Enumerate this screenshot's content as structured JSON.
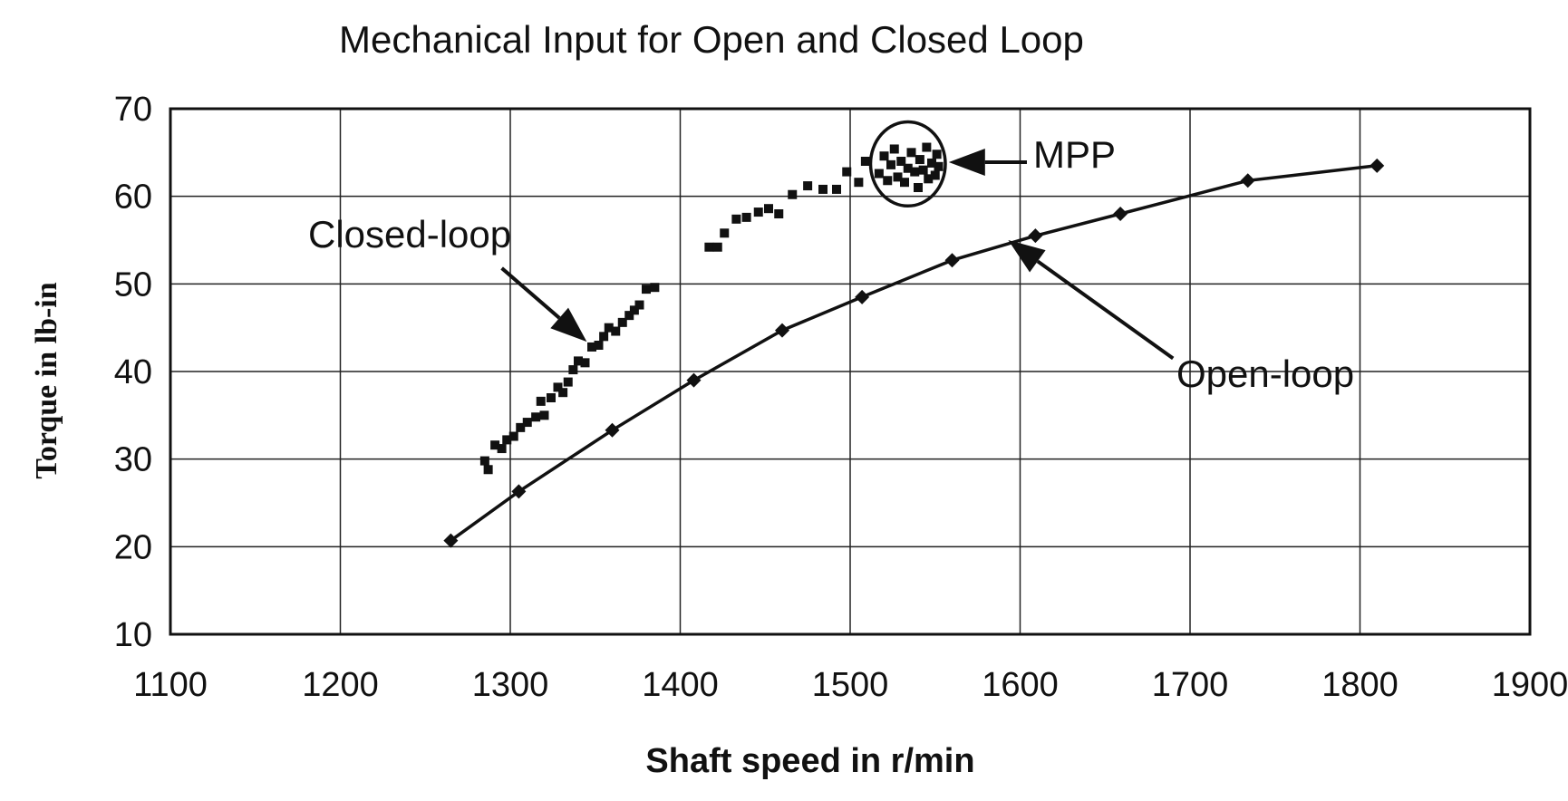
{
  "chart_data": {
    "type": "scatter",
    "title": "Mechanical Input for Open and Closed Loop",
    "xlabel": "Shaft speed in r/min",
    "ylabel": "Torque in lb-in",
    "xlim": [
      1100,
      1900
    ],
    "ylim": [
      10,
      70
    ],
    "x_ticks": [
      1100,
      1200,
      1300,
      1400,
      1500,
      1600,
      1700,
      1800,
      1900
    ],
    "y_ticks": [
      10,
      20,
      30,
      40,
      50,
      60,
      70
    ],
    "grid": true,
    "series": [
      {
        "name": "Open-loop",
        "style": "line-with-diamond-markers",
        "color": "#111111",
        "points": [
          [
            1265,
            20.7
          ],
          [
            1305,
            26.3
          ],
          [
            1360,
            33.3
          ],
          [
            1408,
            39.0
          ],
          [
            1460,
            44.7
          ],
          [
            1507,
            48.5
          ],
          [
            1560,
            52.7
          ],
          [
            1609,
            55.5
          ],
          [
            1659,
            58.0
          ],
          [
            1734,
            61.8
          ],
          [
            1810,
            63.5
          ]
        ]
      },
      {
        "name": "Closed-loop",
        "style": "square-markers",
        "color": "#111111",
        "points": [
          [
            1285,
            29.8
          ],
          [
            1287,
            28.8
          ],
          [
            1291,
            31.6
          ],
          [
            1295,
            31.2
          ],
          [
            1298,
            32.2
          ],
          [
            1302,
            32.6
          ],
          [
            1306,
            33.6
          ],
          [
            1310,
            34.2
          ],
          [
            1315,
            34.8
          ],
          [
            1320,
            35.0
          ],
          [
            1318,
            36.6
          ],
          [
            1324,
            37.0
          ],
          [
            1328,
            38.2
          ],
          [
            1331,
            37.6
          ],
          [
            1334,
            38.8
          ],
          [
            1337,
            40.2
          ],
          [
            1340,
            41.2
          ],
          [
            1344,
            41.0
          ],
          [
            1348,
            42.8
          ],
          [
            1352,
            43.0
          ],
          [
            1355,
            44.0
          ],
          [
            1358,
            45.0
          ],
          [
            1362,
            44.6
          ],
          [
            1366,
            45.6
          ],
          [
            1370,
            46.4
          ],
          [
            1373,
            47.0
          ],
          [
            1376,
            47.6
          ],
          [
            1380,
            49.4
          ],
          [
            1385,
            49.6
          ],
          [
            1417,
            54.2
          ],
          [
            1422,
            54.2
          ],
          [
            1426,
            55.8
          ],
          [
            1433,
            57.4
          ],
          [
            1439,
            57.6
          ],
          [
            1446,
            58.2
          ],
          [
            1452,
            58.6
          ],
          [
            1458,
            58.0
          ],
          [
            1466,
            60.2
          ],
          [
            1475,
            61.2
          ],
          [
            1484,
            60.8
          ],
          [
            1492,
            60.8
          ],
          [
            1498,
            62.8
          ],
          [
            1505,
            61.6
          ],
          [
            1509,
            64.0
          ]
        ]
      },
      {
        "name": "MPP",
        "style": "square-markers",
        "color": "#111111",
        "points": [
          [
            1517,
            62.6
          ],
          [
            1520,
            64.6
          ],
          [
            1522,
            61.8
          ],
          [
            1524,
            63.6
          ],
          [
            1526,
            65.4
          ],
          [
            1528,
            62.2
          ],
          [
            1530,
            64.0
          ],
          [
            1532,
            61.6
          ],
          [
            1534,
            63.2
          ],
          [
            1536,
            65.0
          ],
          [
            1538,
            62.8
          ],
          [
            1540,
            61.0
          ],
          [
            1541,
            64.2
          ],
          [
            1543,
            63.0
          ],
          [
            1545,
            65.6
          ],
          [
            1546,
            62.0
          ],
          [
            1548,
            63.8
          ],
          [
            1550,
            62.4
          ],
          [
            1551,
            64.8
          ],
          [
            1552,
            63.4
          ]
        ]
      }
    ],
    "annotations": [
      {
        "text": "Closed-loop",
        "arrow_from": [
          1295,
          51.8
        ],
        "arrow_to": [
          1345,
          43.4
        ]
      },
      {
        "text": "Open-loop",
        "arrow_from": [
          1690,
          41.5
        ],
        "arrow_to": [
          1593,
          55.0
        ]
      },
      {
        "text": "MPP",
        "arrow_from": [
          1604,
          63.9
        ],
        "arrow_to": [
          1558,
          63.9
        ]
      }
    ],
    "highlight_circle": {
      "center": [
        1534,
        63.7
      ],
      "radius_x": 22,
      "radius_y": 4.8
    }
  }
}
